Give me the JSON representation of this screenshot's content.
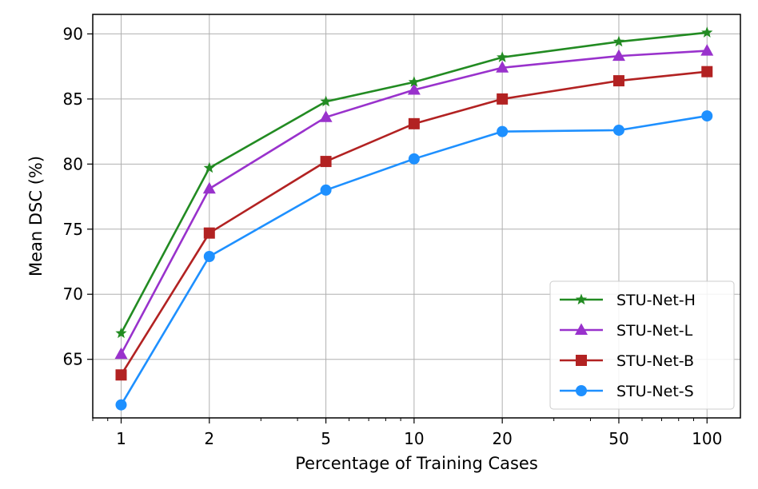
{
  "chart_data": {
    "type": "line",
    "title": "",
    "xlabel": "Percentage of Training Cases",
    "ylabel": "Mean DSC (%)",
    "xscale": "log",
    "x": [
      1,
      2,
      5,
      10,
      20,
      50,
      100
    ],
    "xticks": [
      1,
      2,
      5,
      10,
      20,
      50,
      100
    ],
    "xtick_labels": [
      "1",
      "2",
      "5",
      "10",
      "20",
      "50",
      "100"
    ],
    "yticks": [
      65,
      70,
      75,
      80,
      85,
      90
    ],
    "ytick_labels": [
      "65",
      "70",
      "75",
      "80",
      "85",
      "90"
    ],
    "xlim": [
      0.8,
      130
    ],
    "ylim": [
      60.5,
      91.5
    ],
    "grid": true,
    "legend_position": "bottom-right",
    "series": [
      {
        "name": "STU-Net-H",
        "color": "#228b22",
        "marker": "star",
        "values": [
          67.0,
          79.7,
          84.8,
          86.3,
          88.2,
          89.4,
          90.1
        ]
      },
      {
        "name": "STU-Net-L",
        "color": "#9932cc",
        "marker": "triangle",
        "values": [
          65.4,
          78.1,
          83.6,
          85.7,
          87.4,
          88.3,
          88.7
        ]
      },
      {
        "name": "STU-Net-B",
        "color": "#b22222",
        "marker": "square",
        "values": [
          63.8,
          74.7,
          80.2,
          83.1,
          85.0,
          86.4,
          87.1
        ]
      },
      {
        "name": "STU-Net-S",
        "color": "#1e90ff",
        "marker": "circle",
        "values": [
          61.5,
          72.9,
          78.0,
          80.4,
          82.5,
          82.6,
          83.7
        ]
      }
    ]
  }
}
